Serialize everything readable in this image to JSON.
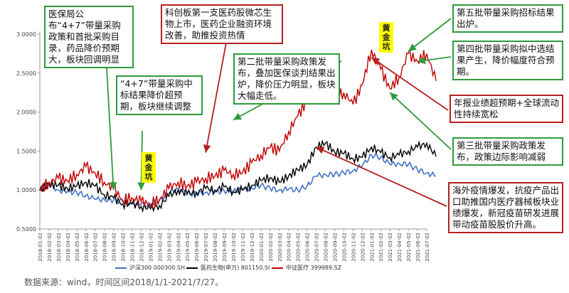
{
  "chart_data": {
    "type": "line",
    "ylim": [
      0.5,
      3.0
    ],
    "yticks": [
      "0.5000",
      "1.0000",
      "1.5000",
      "2.0000",
      "2.5000",
      "3.0000"
    ],
    "x_ticks": [
      "2018-01-02",
      "2018-02-02",
      "2018-03-02",
      "2018-04-02",
      "2018-05-02",
      "2018-06-02",
      "2018-07-02",
      "2018-08-02",
      "2018-09-02",
      "2018-10-02",
      "2018-11-02",
      "2018-12-02",
      "2019-01-02",
      "2019-02-02",
      "2019-03-02",
      "2019-04-02",
      "2019-05-02",
      "2019-06-02",
      "2019-07-02",
      "2019-08-02",
      "2019-09-02",
      "2019-10-02",
      "2019-11-02",
      "2019-12-02",
      "2020-01-02",
      "2020-02-02",
      "2020-03-02",
      "2020-04-02",
      "2020-05-02",
      "2020-06-02",
      "2020-07-02",
      "2020-08-02",
      "2020-09-02",
      "2020-10-02",
      "2020-11-02",
      "2020-12-02",
      "2021-01-02",
      "2021-02-02",
      "2021-03-02",
      "2021-04-02",
      "2021-05-02",
      "2021-06-02",
      "2021-07-02"
    ],
    "series": [
      {
        "name": "沪深300 000300.SH",
        "color": "#4472c4",
        "values": [
          1.0,
          1.07,
          1.0,
          0.98,
          0.97,
          0.93,
          0.88,
          0.88,
          0.87,
          0.85,
          0.83,
          0.82,
          0.8,
          0.87,
          0.96,
          1.02,
          0.96,
          0.95,
          0.97,
          0.97,
          0.99,
          0.99,
          1.0,
          1.03,
          1.06,
          1.02,
          1.0,
          1.01,
          1.0,
          1.05,
          1.18,
          1.2,
          1.2,
          1.22,
          1.25,
          1.31,
          1.45,
          1.42,
          1.33,
          1.34,
          1.33,
          1.26,
          1.22,
          1.18
        ]
      },
      {
        "name": "医药生物(申万) 801150.SI",
        "color": "#000000",
        "values": [
          1.0,
          1.08,
          1.06,
          1.02,
          1.05,
          1.1,
          1.05,
          0.94,
          0.9,
          0.82,
          0.82,
          0.79,
          0.76,
          0.8,
          0.92,
          1.0,
          0.95,
          0.97,
          1.02,
          1.0,
          1.04,
          0.98,
          1.0,
          1.06,
          1.12,
          1.16,
          1.1,
          1.18,
          1.26,
          1.32,
          1.55,
          1.6,
          1.49,
          1.47,
          1.4,
          1.42,
          1.55,
          1.48,
          1.42,
          1.45,
          1.5,
          1.55,
          1.6,
          1.43
        ]
      },
      {
        "name": "中证医疗 399989.SZ",
        "color": "#c00000",
        "values": [
          1.0,
          1.1,
          1.15,
          1.12,
          1.2,
          1.3,
          1.22,
          1.1,
          1.02,
          0.87,
          0.9,
          0.85,
          0.82,
          0.88,
          1.02,
          1.1,
          1.05,
          1.1,
          1.15,
          1.18,
          1.25,
          1.2,
          1.22,
          1.35,
          1.45,
          1.55,
          1.5,
          1.75,
          1.95,
          2.15,
          2.5,
          2.4,
          2.2,
          2.25,
          2.1,
          2.35,
          2.8,
          2.55,
          2.3,
          2.45,
          2.75,
          2.65,
          2.75,
          2.4
        ]
      }
    ]
  },
  "annotations": [
    {
      "id": "policy-4plus7-first",
      "text": "医保局公布“4+7”带量采购政策和首批采购目录，药品降价预期大，板块回调明显",
      "color": "green"
    },
    {
      "id": "4plus7-bid-result",
      "text": "“4+7”带量采购中标结果降价超预期，板块继续调整",
      "color": "green"
    },
    {
      "id": "star-market-first",
      "text": "科创板第一支医药股微芯生物上市，医药企业融资环境改善，助推投资热情",
      "color": "red"
    },
    {
      "id": "second-batch",
      "text": "第二批带量采购政策发布，叠加医保谈判结果出炉，降价压力明显，板块大幅走低。",
      "color": "green"
    },
    {
      "id": "fifth-batch",
      "text": "第五批带量采购招标结果出炉。",
      "color": "green"
    },
    {
      "id": "fourth-batch",
      "text": "第四批带量采购拟中选结果产生，降价幅度符合预期。",
      "color": "green"
    },
    {
      "id": "annual-report",
      "text": "年报业绩超预期+全球流动性持续宽松",
      "color": "red"
    },
    {
      "id": "third-batch",
      "text": "第三批带量采购政策发布，政策边际影响减弱",
      "color": "green"
    },
    {
      "id": "covid-outbreak",
      "text": "海外疫情爆发，抗疫产品出口助推国内医疗器械板块业绩爆发，新冠疫苗研发进展带动疫苗股股价升高。",
      "color": "red"
    }
  ],
  "golden_pits": [
    "黄金坑",
    "黄金坑"
  ],
  "source": "数据来源：wind，时间区间2018/1/1-2021/7/27。",
  "colors": {
    "green": "#2e9a3a",
    "red": "#b52020",
    "highlight": "#ffff00"
  }
}
